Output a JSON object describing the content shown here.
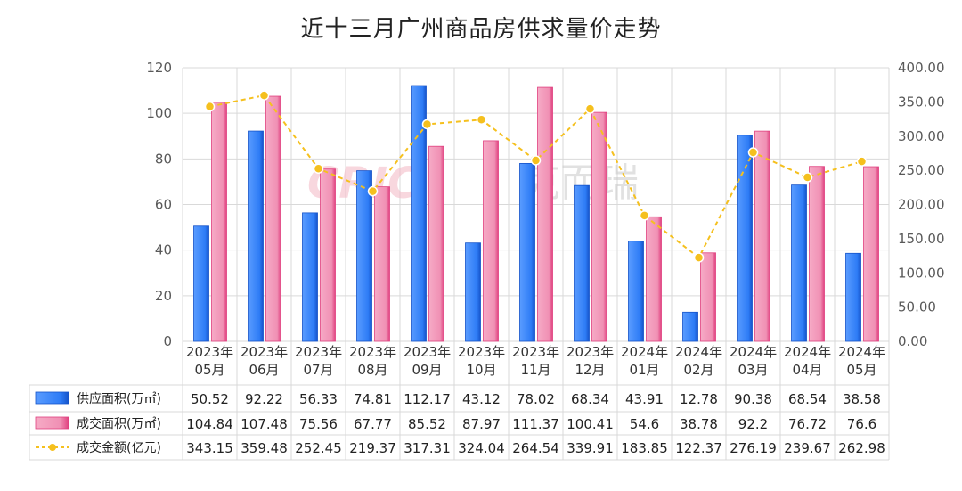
{
  "title": "近十三月广州商品房供求量价走势",
  "watermark": {
    "brand": "CRIC",
    "text": "克而瑞"
  },
  "colors": {
    "supply": "#2e7cf6",
    "supply_dark": "#1553c9",
    "deal": "#f090b4",
    "deal_dark": "#e0407f",
    "amount": "#f5c01e",
    "grid": "#d9d9d9",
    "watermark": "#f4b8c4"
  },
  "chart_data": {
    "type": "bar",
    "title": "近十三月广州商品房供求量价走势",
    "categories": [
      [
        "2023年",
        "05月"
      ],
      [
        "2023年",
        "06月"
      ],
      [
        "2023年",
        "07月"
      ],
      [
        "2023年",
        "08月"
      ],
      [
        "2023年",
        "09月"
      ],
      [
        "2023年",
        "10月"
      ],
      [
        "2023年",
        "11月"
      ],
      [
        "2023年",
        "12月"
      ],
      [
        "2024年",
        "01月"
      ],
      [
        "2024年",
        "02月"
      ],
      [
        "2024年",
        "03月"
      ],
      [
        "2024年",
        "04月"
      ],
      [
        "2024年",
        "05月"
      ]
    ],
    "series": [
      {
        "name": "供应面积(万㎡)",
        "type": "bar",
        "axis": "left",
        "values": [
          50.52,
          92.22,
          56.33,
          74.81,
          112.17,
          43.12,
          78.02,
          68.34,
          43.91,
          12.78,
          90.38,
          68.54,
          38.58
        ]
      },
      {
        "name": "成交面积(万㎡)",
        "type": "bar",
        "axis": "left",
        "values": [
          104.84,
          107.48,
          75.56,
          67.77,
          85.52,
          87.97,
          111.37,
          100.41,
          54.6,
          38.78,
          92.2,
          76.72,
          76.6
        ]
      },
      {
        "name": "成交金额(亿元)",
        "type": "line",
        "axis": "right",
        "values": [
          343.15,
          359.48,
          252.45,
          219.37,
          317.31,
          324.04,
          264.54,
          339.91,
          183.85,
          122.37,
          276.19,
          239.67,
          262.98
        ]
      }
    ],
    "table_display": [
      [
        "50.52",
        "92.22",
        "56.33",
        "74.81",
        "112.17",
        "43.12",
        "78.02",
        "68.34",
        "43.91",
        "12.78",
        "90.38",
        "68.54",
        "38.58"
      ],
      [
        "104.84",
        "107.48",
        "75.56",
        "67.77",
        "85.52",
        "87.97",
        "111.37",
        "100.41",
        "54.6",
        "38.78",
        "92.2",
        "76.72",
        "76.6"
      ],
      [
        "343.15",
        "359.48",
        "252.45",
        "219.37",
        "317.31",
        "324.04",
        "264.54",
        "339.91",
        "183.85",
        "122.37",
        "276.19",
        "239.67",
        "262.98"
      ]
    ],
    "ylim_left": [
      0,
      120
    ],
    "yticks_left": [
      "0",
      "20",
      "40",
      "60",
      "80",
      "100",
      "120"
    ],
    "ylim_right": [
      0,
      400
    ],
    "yticks_right": [
      "0.00",
      "50.00",
      "100.00",
      "150.00",
      "200.00",
      "250.00",
      "300.00",
      "350.00",
      "400.00"
    ],
    "grid": true,
    "legend": "data-table"
  }
}
